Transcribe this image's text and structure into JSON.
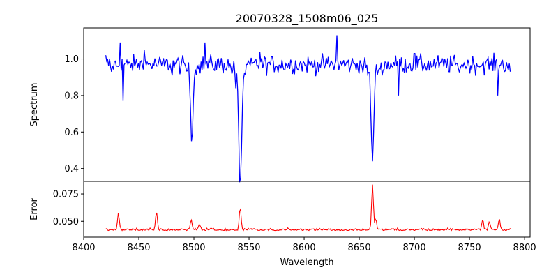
{
  "chart_data": [
    {
      "type": "line",
      "title": "20070328_1508m06_025",
      "xlabel": "",
      "ylabel": "Spectrum",
      "xlim": [
        8400,
        8805
      ],
      "ylim": [
        0.33,
        1.17
      ],
      "yticks": [
        0.4,
        0.6,
        0.8,
        1.0
      ],
      "ytick_labels": [
        "0.4",
        "0.6",
        "0.8",
        "1.0"
      ],
      "grid": false,
      "series": [
        {
          "color": "#0000ff",
          "x_range": [
            8420,
            8787
          ],
          "continuum": 0.97,
          "absorption_lines": [
            {
              "center": 8498.0,
              "depth": 0.42,
              "width": 0.9
            },
            {
              "center": 8542.0,
              "depth": 0.62,
              "width": 1.3
            },
            {
              "center": 8662.0,
              "depth": 0.52,
              "width": 1.1
            }
          ],
          "sample_points": [
            [
              8420,
              1.02
            ],
            [
              8425,
              0.93
            ],
            [
              8430,
              0.96
            ],
            [
              8433,
              1.09
            ],
            [
              8436,
              0.77
            ],
            [
              8440,
              0.97
            ],
            [
              8455,
              1.05
            ],
            [
              8470,
              0.99
            ],
            [
              8480,
              0.91
            ],
            [
              8490,
              1.02
            ],
            [
              8498,
              0.55
            ],
            [
              8505,
              0.97
            ],
            [
              8510,
              1.09
            ],
            [
              8530,
              0.96
            ],
            [
              8538,
              0.84
            ],
            [
              8542,
              0.35
            ],
            [
              8548,
              0.97
            ],
            [
              8560,
              1.04
            ],
            [
              8600,
              0.98
            ],
            [
              8630,
              1.13
            ],
            [
              8650,
              0.92
            ],
            [
              8662,
              0.44
            ],
            [
              8670,
              0.98
            ],
            [
              8686,
              0.8
            ],
            [
              8700,
              1.03
            ],
            [
              8740,
              0.95
            ],
            [
              8776,
              0.8
            ],
            [
              8787,
              0.93
            ]
          ]
        }
      ]
    },
    {
      "type": "line",
      "title": "",
      "xlabel": "Wavelength",
      "ylabel": "Error",
      "xlim": [
        8400,
        8805
      ],
      "ylim": [
        0.0355,
        0.0865
      ],
      "xticks": [
        8400,
        8450,
        8500,
        8550,
        8600,
        8650,
        8700,
        8750,
        8800
      ],
      "xtick_labels": [
        "8400",
        "8450",
        "8500",
        "8550",
        "8600",
        "8650",
        "8700",
        "8750",
        "8800"
      ],
      "yticks": [
        0.05,
        0.075
      ],
      "ytick_labels": [
        "0.050",
        "0.075"
      ],
      "grid": false,
      "series": [
        {
          "color": "#ff0000",
          "x_range": [
            8420,
            8787
          ],
          "baseline": 0.0415,
          "peaks": [
            {
              "center": 8431.5,
              "height": 0.0575
            },
            {
              "center": 8466.0,
              "height": 0.0585
            },
            {
              "center": 8497.5,
              "height": 0.051
            },
            {
              "center": 8505.0,
              "height": 0.047
            },
            {
              "center": 8542.0,
              "height": 0.0625
            },
            {
              "center": 8662.0,
              "height": 0.0835
            },
            {
              "center": 8665.0,
              "height": 0.052
            },
            {
              "center": 8762.0,
              "height": 0.051
            },
            {
              "center": 8768.0,
              "height": 0.0495
            },
            {
              "center": 8777.0,
              "height": 0.0515
            }
          ]
        }
      ]
    }
  ]
}
